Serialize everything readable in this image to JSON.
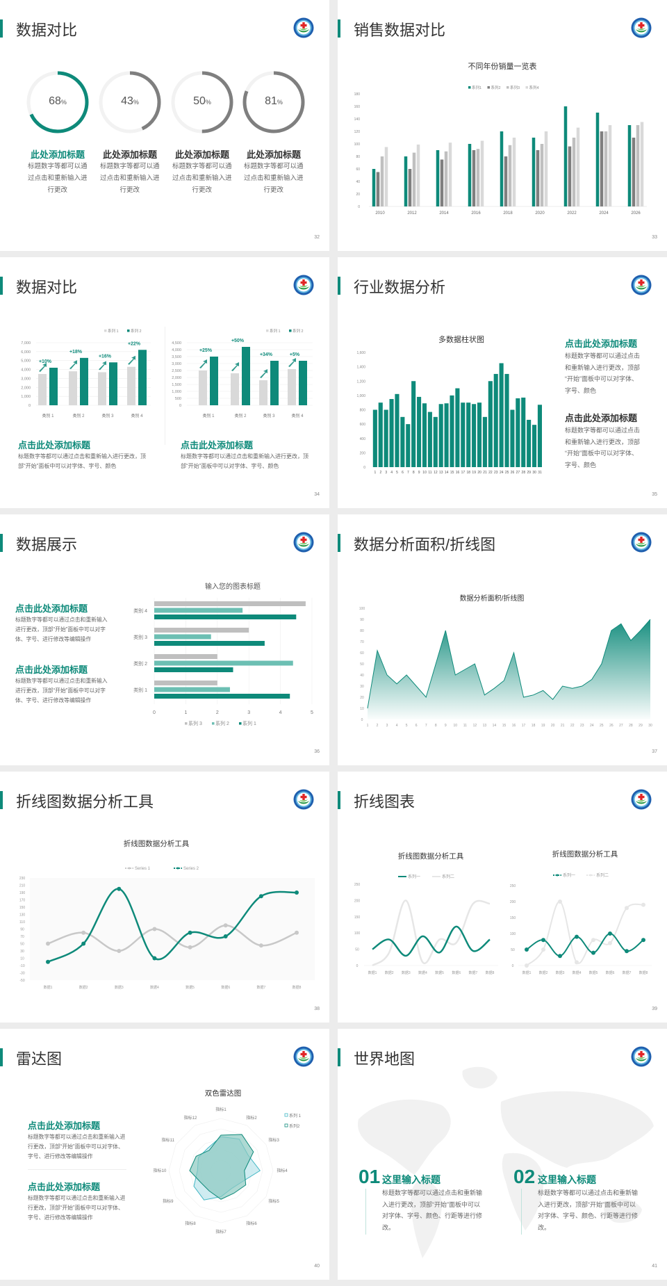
{
  "brand": {
    "accent": "#0e8a7a",
    "logo_icon": "hospital-emblem-icon"
  },
  "slides": [
    {
      "page": "32",
      "title": "数据对比",
      "items": [
        {
          "value": "68",
          "unit": "%",
          "title": "此处添加标题",
          "desc": "标题数字等都可以通过点击和重新输入进行更改",
          "color": "#0e8a7a"
        },
        {
          "value": "43",
          "unit": "%",
          "title": "此处添加标题",
          "desc": "标题数字等都可以通过点击和重新输入进行更改",
          "color": "#7f7f7f"
        },
        {
          "value": "50",
          "unit": "%",
          "title": "此处添加标题",
          "desc": "标题数字等都可以通过点击和重新输入进行更改",
          "color": "#7f7f7f"
        },
        {
          "value": "81",
          "unit": "%",
          "title": "此处添加标题",
          "desc": "标题数字等都可以通过点击和重新输入进行更改",
          "color": "#7f7f7f"
        }
      ]
    },
    {
      "page": "33",
      "title": "销售数据对比"
    },
    {
      "page": "34",
      "title": "数据对比",
      "blocks": [
        {
          "heading": "点击此处添加标题",
          "desc": "标题数字等都可以通过点击和重新输入进行更改，顶部“开始”面板中可以对字体、字号、颜色"
        },
        {
          "heading": "点击此处添加标题",
          "desc": "标题数字等都可以通过点击和重新输入进行更改，顶部“开始”面板中可以对字体、字号、颜色"
        }
      ]
    },
    {
      "page": "35",
      "title": "行业数据分析",
      "blocks": [
        {
          "heading": "点击此处添加标题",
          "desc": "标题数字等都可以通过点击和重新输入进行更改，顶部“开始”面板中可以对字体、字号、颜色"
        },
        {
          "heading": "点击此处添加标题",
          "desc": "标题数字等都可以通过点击和重新输入进行更改，顶部“开始”面板中可以对字体、字号、颜色"
        }
      ]
    },
    {
      "page": "36",
      "title": "数据展示",
      "blocks": [
        {
          "heading": "点击此处添加标题",
          "desc": "标题数字等都可以通过点击和重新输入进行更改，顶部“开始”面板中可以对字体、字号、进行修改等编辑操作"
        },
        {
          "heading": "点击此处添加标题",
          "desc": "标题数字等都可以通过点击和重新输入进行更改，顶部“开始”面板中可以对字体、字号、进行修改等编辑操作"
        }
      ]
    },
    {
      "page": "37",
      "title": "数据分析面积/折线图"
    },
    {
      "page": "38",
      "title": "折线图数据分析工具"
    },
    {
      "page": "39",
      "title": "折线图表"
    },
    {
      "page": "40",
      "title": "雷达图",
      "blocks": [
        {
          "heading": "点击此处添加标题",
          "desc": "标题数字等都可以通过点击和重新输入进行更改，顶部“开始”面板中可以对字体、字号、进行修改等编辑操作"
        },
        {
          "heading": "点击此处添加标题",
          "desc": "标题数字等都可以通过点击和重新输入进行更改，顶部“开始”面板中可以对字体、字号、进行修改等编辑操作"
        }
      ]
    },
    {
      "page": "41",
      "title": "世界地图",
      "background": "world-map",
      "items": [
        {
          "num": "01",
          "heading": "这里输入标题",
          "desc": "标题数字等都可以通过点击和重新输入进行更改，顶部“开始”面板中可以对字体、字号、颜色、行距等进行修改。"
        },
        {
          "num": "02",
          "heading": "这里输入标题",
          "desc": "标题数字等都可以通过点击和重新输入进行更改，顶部“开始”面板中可以对字体、字号、颜色、行距等进行修改。"
        }
      ]
    }
  ],
  "chart_data": [
    {
      "type": "bar",
      "title": "不同年份销量一览表",
      "categories": [
        "2010",
        "2012",
        "2014",
        "2016",
        "2018",
        "2020",
        "2022",
        "2024",
        "2026"
      ],
      "ylim": [
        0,
        180
      ],
      "ytick": 20,
      "legend": "top",
      "series": [
        {
          "name": "系列1",
          "color": "#0e8a7a",
          "values": [
            60,
            80,
            90,
            100,
            120,
            110,
            160,
            150,
            130
          ]
        },
        {
          "name": "系列2",
          "color": "#7f7f7f",
          "values": [
            55,
            60,
            75,
            90,
            80,
            90,
            96,
            120,
            110
          ]
        },
        {
          "name": "系列3",
          "color": "#bfbfbf",
          "values": [
            80,
            86,
            88,
            92,
            98,
            100,
            110,
            120,
            130
          ]
        },
        {
          "name": "系列4",
          "color": "#d9d9d9",
          "values": [
            95,
            99,
            102,
            105,
            110,
            120,
            126,
            130,
            135
          ]
        }
      ]
    },
    {
      "type": "bar",
      "categories": [
        "类别 1",
        "类别 2",
        "类别 3",
        "类别 4"
      ],
      "ylim": [
        0,
        7000
      ],
      "ytick": 1000,
      "legend": "top-right",
      "series": [
        {
          "name": "系列 1",
          "color": "#d9d9d9",
          "values": [
            3500,
            3800,
            3700,
            4300
          ]
        },
        {
          "name": "系列 2",
          "color": "#0e8a7a",
          "values": [
            4200,
            5300,
            4800,
            6200
          ]
        }
      ],
      "annotations": [
        "+10%",
        "+18%",
        "+16%",
        "+22%"
      ]
    },
    {
      "type": "bar",
      "categories": [
        "类别 1",
        "类别 2",
        "类别 3",
        "类别 4"
      ],
      "ylim": [
        0,
        4500
      ],
      "ytick": 500,
      "legend": "top-right",
      "series": [
        {
          "name": "系列 1",
          "color": "#d9d9d9",
          "values": [
            2500,
            2300,
            1800,
            2600
          ]
        },
        {
          "name": "系列 2",
          "color": "#0e8a7a",
          "values": [
            3500,
            4200,
            3200,
            3200
          ]
        }
      ],
      "annotations": [
        "+25%",
        "+50%",
        "+34%",
        "+5%"
      ]
    },
    {
      "type": "bar",
      "title": "多数据柱状图",
      "ylim": [
        0,
        1600
      ],
      "ytick": 200,
      "categories": [
        "1",
        "2",
        "3",
        "4",
        "5",
        "6",
        "7",
        "8",
        "9",
        "10",
        "11",
        "12",
        "13",
        "14",
        "15",
        "16",
        "17",
        "18",
        "19",
        "20",
        "21",
        "22",
        "23",
        "24",
        "25",
        "26",
        "27",
        "28",
        "29",
        "30",
        "31"
      ],
      "series": [
        {
          "color": "#0e8a7a",
          "values": [
            800,
            900,
            800,
            950,
            1020,
            700,
            600,
            1200,
            980,
            890,
            770,
            700,
            880,
            890,
            1000,
            1100,
            900,
            900,
            880,
            900,
            700,
            1200,
            1300,
            1450,
            1300,
            800,
            960,
            970,
            660,
            590,
            870
          ]
        }
      ]
    },
    {
      "type": "bar",
      "orientation": "horizontal",
      "title": "输入您的图表标题",
      "categories": [
        "类别 1",
        "类别 2",
        "类别 3",
        "类别 4"
      ],
      "xlim": [
        0,
        5
      ],
      "xtick": 1,
      "legend": "bottom",
      "series": [
        {
          "name": "系列 3",
          "color": "#bfbfbf",
          "values": [
            2.0,
            2.0,
            3.0,
            4.8
          ]
        },
        {
          "name": "系列 2",
          "color": "#6cbfb3",
          "values": [
            2.4,
            4.4,
            1.8,
            2.8
          ]
        },
        {
          "name": "系列 1",
          "color": "#0e8a7a",
          "values": [
            4.3,
            2.5,
            3.5,
            4.5
          ]
        }
      ]
    },
    {
      "type": "area",
      "title": "数据分析面积/折线图",
      "ylim": [
        0,
        100
      ],
      "ytick": 10,
      "x": [
        1,
        2,
        3,
        4,
        5,
        6,
        7,
        8,
        9,
        10,
        11,
        12,
        13,
        14,
        15,
        16,
        17,
        18,
        19,
        20,
        21,
        22,
        23,
        24,
        25,
        26,
        27,
        28,
        29,
        30
      ],
      "series": [
        {
          "color": "#0e8a7a",
          "values": [
            10,
            62,
            40,
            32,
            40,
            30,
            20,
            50,
            80,
            40,
            45,
            50,
            22,
            28,
            35,
            60,
            20,
            22,
            26,
            18,
            30,
            28,
            30,
            36,
            50,
            80,
            86,
            71,
            80,
            90
          ]
        }
      ]
    },
    {
      "type": "line",
      "smooth": true,
      "title": "折线图数据分析工具",
      "ylim": [
        -50,
        230
      ],
      "ytick": 20,
      "legend": "top",
      "categories": [
        "数据1",
        "数据2",
        "数据3",
        "数据4",
        "数据5",
        "数据6",
        "数据7",
        "数据8"
      ],
      "series": [
        {
          "name": "Series 1",
          "color": "#c8c8c8",
          "values": [
            50,
            80,
            30,
            90,
            40,
            100,
            45,
            80
          ]
        },
        {
          "name": "Series 2",
          "color": "#0e8a7a",
          "values": [
            0,
            50,
            200,
            10,
            80,
            70,
            180,
            190
          ]
        }
      ]
    },
    {
      "type": "line",
      "smooth": true,
      "title": "折线图数据分析工具",
      "ylim": [
        0,
        250
      ],
      "ytick": 50,
      "legend": "top",
      "categories": [
        "数据1",
        "数据2",
        "数据3",
        "数据4",
        "数据5",
        "数据6",
        "数据7",
        "数据8"
      ],
      "series": [
        {
          "name": "系列一",
          "color": "#0e8a7a",
          "values": [
            50,
            80,
            30,
            90,
            40,
            120,
            45,
            80
          ]
        },
        {
          "name": "系列二",
          "color": "#e6e6e6",
          "values": [
            0,
            40,
            200,
            10,
            80,
            70,
            190,
            190
          ]
        }
      ]
    },
    {
      "type": "line",
      "smooth": true,
      "markers": true,
      "title": "折线图数据分析工具",
      "ylim": [
        0,
        250
      ],
      "ytick": 50,
      "legend": "top",
      "categories": [
        "数据1",
        "数据2",
        "数据3",
        "数据4",
        "数据5",
        "数据6",
        "数据7",
        "数据8"
      ],
      "series": [
        {
          "name": "系列一",
          "color": "#0e8a7a",
          "values": [
            50,
            80,
            30,
            90,
            40,
            100,
            45,
            80
          ]
        },
        {
          "name": "系列二",
          "color": "#e6e6e6",
          "values": [
            0,
            50,
            200,
            10,
            80,
            70,
            180,
            190
          ]
        }
      ]
    },
    {
      "type": "radar",
      "title": "双色雷达图",
      "rlim": [
        0,
        100
      ],
      "legend": "top-right",
      "categories": [
        "指标1",
        "指标2",
        "指标3",
        "指标4",
        "指标5",
        "指标6",
        "指标7",
        "指标8",
        "指标9",
        "指标10",
        "指标11",
        "指标12"
      ],
      "series": [
        {
          "name": "系列 1",
          "color": "#3fb6c4",
          "fill": "#bfe6ec",
          "values": [
            65,
            70,
            60,
            75,
            45,
            40,
            50,
            65,
            60,
            45,
            50,
            50
          ]
        },
        {
          "name": "系列2",
          "color": "#0e8a7a",
          "fill": "#8cc9c0",
          "values": [
            68,
            80,
            72,
            45,
            55,
            50,
            55,
            45,
            45,
            60,
            55,
            45
          ]
        }
      ]
    }
  ]
}
